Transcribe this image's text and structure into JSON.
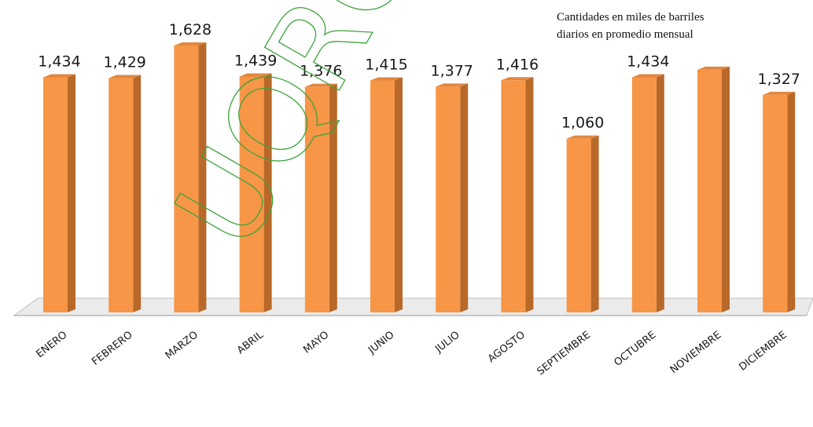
{
  "chart_data": {
    "type": "bar",
    "categories": [
      "ENERO",
      "FEBRERO",
      "MARZO",
      "ABRIL",
      "MAYO",
      "JUNIO",
      "JULIO",
      "AGOSTO",
      "SEPTIEMBRE",
      "OCTUBRE",
      "NOVIEMBRE",
      "DICIEMBRE"
    ],
    "values": [
      1434,
      1429,
      1628,
      1439,
      1376,
      1415,
      1377,
      1416,
      1060,
      1434,
      1480,
      1327
    ],
    "data_labels": [
      "1,434",
      "1,429",
      "1,628",
      "1,439",
      "1,376",
      "1,415",
      "1,377",
      "1,416",
      "1,060",
      "1,434",
      "",
      "1,327"
    ],
    "annotation": [
      "Cantidades en miles de barriles",
      "diarios en promedio mensual"
    ],
    "colors": {
      "bar_front": "#f79646",
      "bar_side": "#b8692a",
      "bar_top": "#e2863f",
      "floor": "#ebebeb"
    },
    "grid": false,
    "legend": "none",
    "ylim": [
      0,
      1700
    ]
  },
  "watermark": "UQROO",
  "watermark_color": "#3aa33a"
}
